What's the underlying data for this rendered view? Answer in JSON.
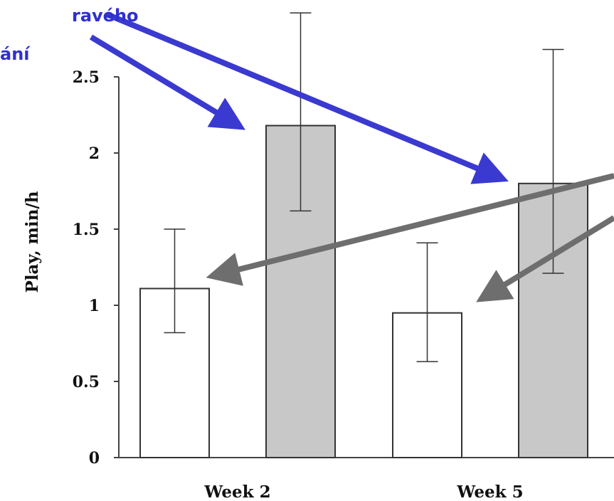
{
  "annotations": {
    "line1": "ravého",
    "line2": "ání",
    "color": "#3030cc",
    "arrow_color_blue": "#3a3ad0",
    "arrow_color_gray": "#6e6e6e"
  },
  "chart_data": {
    "type": "bar",
    "title": "",
    "xlabel": "",
    "ylabel": "Play, min/h",
    "categories": [
      "Week 2",
      "Week 5"
    ],
    "ylim": [
      0,
      2.5
    ],
    "yticks": [
      "0",
      "0.5",
      "1",
      "1.5",
      "2",
      "2.5"
    ],
    "grid": false,
    "series": [
      {
        "fill": "#ffffff",
        "values": [
          1.11,
          0.95
        ],
        "err_low": [
          0.82,
          0.63
        ],
        "err_high": [
          1.5,
          1.41
        ]
      },
      {
        "fill": "#c8c8c8",
        "values": [
          2.18,
          1.8
        ],
        "err_low": [
          1.62,
          1.21
        ],
        "err_high": [
          2.92,
          2.68
        ]
      }
    ]
  }
}
